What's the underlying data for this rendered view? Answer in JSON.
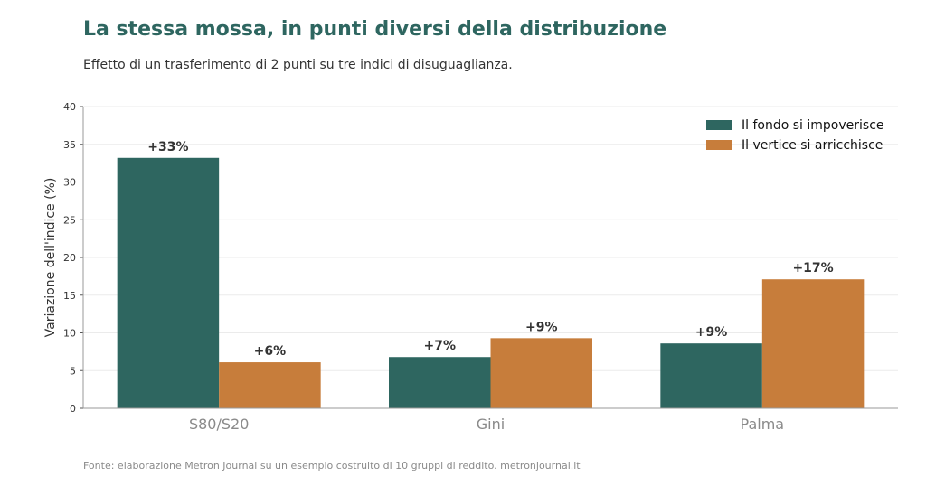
{
  "header": {
    "title": "La stessa mossa, in punti diversi della distribuzione",
    "subtitle": "Effetto di un trasferimento di 2 punti su tre indici di disuguaglianza."
  },
  "footer": {
    "source": "Fonte: elaborazione Metron Journal su un esempio costruito di 10 gruppi di reddito. metronjournal.it"
  },
  "chart_data": {
    "type": "bar",
    "categories": [
      "S80/S20",
      "Gini",
      "Palma"
    ],
    "series": [
      {
        "name": "Il fondo si impoverisce",
        "values": [
          33.2,
          6.8,
          8.6
        ],
        "labels": [
          "+33%",
          "+7%",
          "+9%"
        ],
        "color": "#2e6660"
      },
      {
        "name": "Il vertice si arricchisce",
        "values": [
          6.1,
          9.3,
          17.1
        ],
        "labels": [
          "+6%",
          "+9%",
          "+17%"
        ],
        "color": "#c77d3b"
      }
    ],
    "ylabel": "Variazione dell'indice (%)",
    "ylim": [
      0,
      40
    ],
    "yticks": [
      0,
      5,
      10,
      15,
      20,
      25,
      30,
      35,
      40
    ],
    "grid": true,
    "legend_position": "top-right"
  }
}
